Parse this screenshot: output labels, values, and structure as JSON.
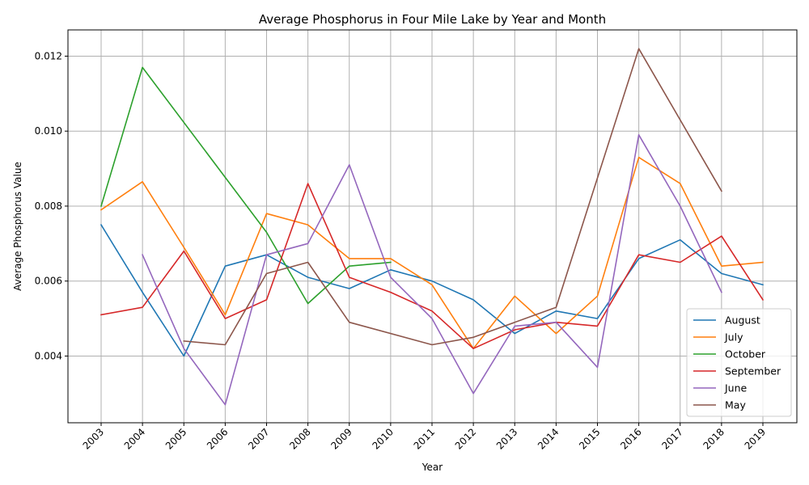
{
  "chart_data": {
    "type": "line",
    "title": "Average Phosphorus in Four Mile Lake by Year and Month",
    "xlabel": "Year",
    "ylabel": "Average Phosphorus Value",
    "x": [
      "2003",
      "2004",
      "2005",
      "2006",
      "2007",
      "2008",
      "2009",
      "2010",
      "2011",
      "2012",
      "2013",
      "2014",
      "2015",
      "2016",
      "2017",
      "2018",
      "2019"
    ],
    "ylim": [
      0.00222,
      0.0127
    ],
    "yticks": [
      "0.004",
      "0.006",
      "0.008",
      "0.010",
      "0.012"
    ],
    "grid": true,
    "legend_position": "lower-right",
    "series": [
      {
        "name": "August",
        "color": "#1f77b4",
        "values": [
          0.0075,
          0.0057,
          0.004,
          0.0064,
          0.0067,
          0.0061,
          0.0058,
          0.0063,
          0.006,
          0.0055,
          0.0046,
          0.0052,
          0.005,
          0.0066,
          0.0071,
          0.0062,
          0.0059
        ]
      },
      {
        "name": "July",
        "color": "#ff7f0e",
        "values": [
          0.0079,
          0.00865,
          0.0069,
          0.0051,
          0.0078,
          0.0075,
          0.0066,
          0.0066,
          0.0059,
          0.0042,
          0.0056,
          0.0046,
          0.0056,
          0.0093,
          0.0086,
          0.0064,
          0.0065
        ]
      },
      {
        "name": "October",
        "color": "#2ca02c",
        "values": [
          0.008,
          0.0117,
          null,
          null,
          0.0073,
          0.0054,
          0.0064,
          0.0065,
          null,
          null,
          null,
          null,
          null,
          null,
          null,
          null,
          null
        ]
      },
      {
        "name": "September",
        "color": "#d62728",
        "values": [
          0.0051,
          0.0053,
          0.0068,
          0.005,
          0.0055,
          0.0086,
          0.0061,
          0.0057,
          0.0052,
          0.0042,
          0.0047,
          0.0049,
          0.0048,
          0.0067,
          0.0065,
          0.0072,
          0.0055
        ]
      },
      {
        "name": "June",
        "color": "#9467bd",
        "values": [
          null,
          0.0067,
          0.0042,
          0.0027,
          0.0067,
          0.007,
          0.0091,
          0.0061,
          0.005,
          0.003,
          0.0048,
          0.0049,
          0.0037,
          0.0099,
          0.008,
          0.0057,
          null
        ]
      },
      {
        "name": "May",
        "color": "#8c564b",
        "values": [
          null,
          null,
          0.0044,
          0.0043,
          0.0062,
          0.0065,
          0.0049,
          null,
          0.0043,
          0.0045,
          null,
          0.0053,
          null,
          0.0122,
          null,
          0.0084,
          null
        ]
      }
    ]
  }
}
